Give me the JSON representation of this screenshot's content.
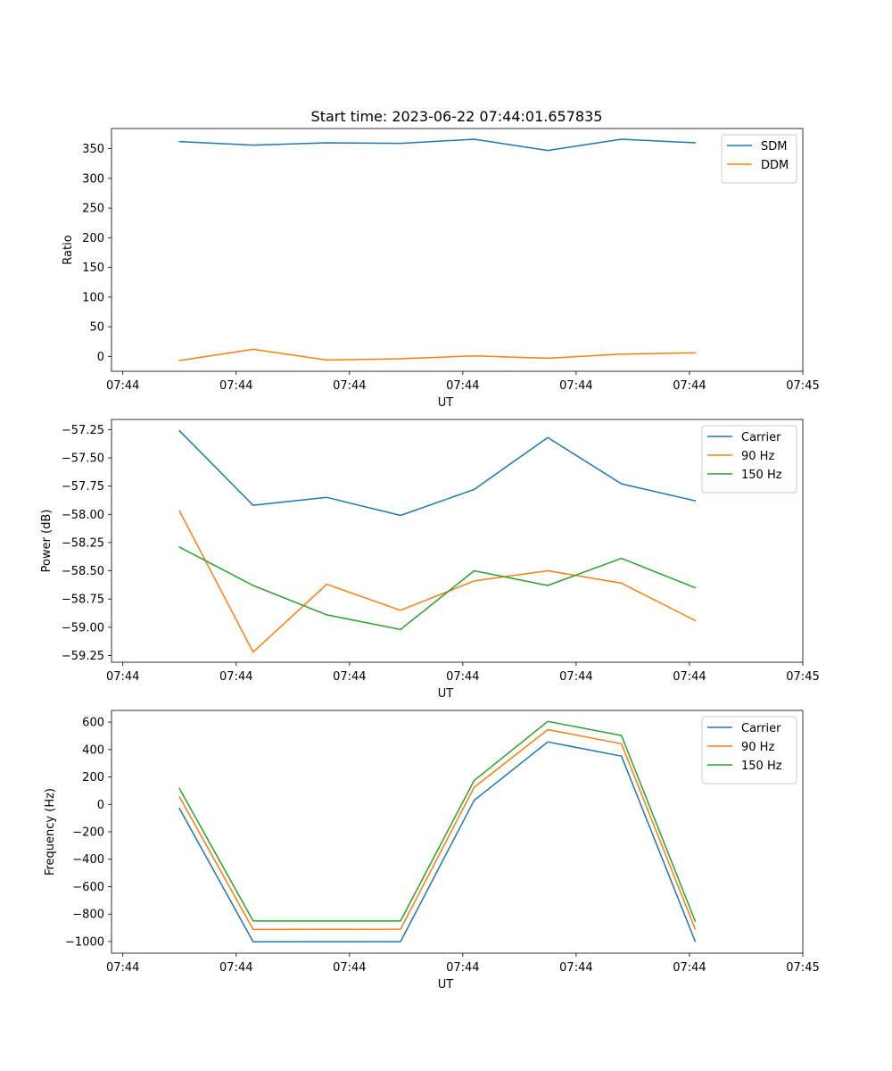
{
  "figure": {
    "title": "Start time: 2023-06-22 07:44:01.657835"
  },
  "chart_data": [
    {
      "type": "line",
      "xlabel": "UT",
      "ylabel": "Ratio",
      "x_tick_labels": [
        "07:44",
        "07:44",
        "07:44",
        "07:44",
        "07:44",
        "07:44",
        "07:45"
      ],
      "x_tick_values": [
        0,
        1,
        2,
        3,
        4,
        5,
        6
      ],
      "xlim": [
        -0.1,
        6.0
      ],
      "y_ticks": [
        0,
        50,
        100,
        150,
        200,
        250,
        300,
        350
      ],
      "ylim": [
        -25,
        384
      ],
      "grid": false,
      "legend_position": "top-right",
      "x": [
        0.5,
        1.15,
        1.8,
        2.45,
        3.1,
        3.75,
        4.4,
        5.05
      ],
      "series": [
        {
          "name": "SDM",
          "color": "#1f77b4",
          "values": [
            362,
            356,
            360,
            359,
            366,
            347,
            366,
            360
          ]
        },
        {
          "name": "DDM",
          "color": "#ff7f0e",
          "values": [
            -7,
            12,
            -6,
            -4,
            1,
            -3,
            4,
            6
          ]
        }
      ]
    },
    {
      "type": "line",
      "xlabel": "UT",
      "ylabel": "Power (dB)",
      "x_tick_labels": [
        "07:44",
        "07:44",
        "07:44",
        "07:44",
        "07:44",
        "07:44",
        "07:45"
      ],
      "x_tick_values": [
        0,
        1,
        2,
        3,
        4,
        5,
        6
      ],
      "xlim": [
        -0.1,
        6.0
      ],
      "y_ticks": [
        -59.25,
        -59.0,
        -58.75,
        -58.5,
        -58.25,
        -58.0,
        -57.75,
        -57.5,
        -57.25
      ],
      "y_tick_labels": [
        "−59.25",
        "−59.00",
        "−58.75",
        "−58.50",
        "−58.25",
        "−58.00",
        "−57.75",
        "−57.50",
        "−57.25"
      ],
      "ylim": [
        -59.31,
        -57.16
      ],
      "grid": false,
      "legend_position": "top-right",
      "x": [
        0.5,
        1.15,
        1.8,
        2.45,
        3.1,
        3.75,
        4.4,
        5.05
      ],
      "series": [
        {
          "name": "Carrier",
          "color": "#1f77b4",
          "values": [
            -57.26,
            -57.92,
            -57.85,
            -58.01,
            -57.78,
            -57.32,
            -57.73,
            -57.88
          ]
        },
        {
          "name": "90 Hz",
          "color": "#ff7f0e",
          "values": [
            -57.97,
            -59.22,
            -58.62,
            -58.85,
            -58.59,
            -58.5,
            -58.61,
            -58.94
          ]
        },
        {
          "name": "150 Hz",
          "color": "#2ca02c",
          "values": [
            -58.29,
            -58.63,
            -58.89,
            -59.02,
            -58.5,
            -58.63,
            -58.39,
            -58.65
          ]
        }
      ]
    },
    {
      "type": "line",
      "xlabel": "UT",
      "ylabel": "Frequency (Hz)",
      "x_tick_labels": [
        "07:44",
        "07:44",
        "07:44",
        "07:44",
        "07:44",
        "07:44",
        "07:45"
      ],
      "x_tick_values": [
        0,
        1,
        2,
        3,
        4,
        5,
        6
      ],
      "xlim": [
        -0.1,
        6.0
      ],
      "y_ticks": [
        -1000,
        -800,
        -600,
        -400,
        -200,
        0,
        200,
        400,
        600
      ],
      "y_tick_labels": [
        "−1000",
        "−800",
        "−600",
        "−400",
        "−200",
        "0",
        "200",
        "400",
        "600"
      ],
      "ylim": [
        -1085,
        685
      ],
      "grid": false,
      "legend_position": "top-right",
      "x": [
        0.5,
        1.15,
        1.8,
        2.45,
        3.1,
        3.75,
        4.4,
        5.05
      ],
      "series": [
        {
          "name": "Carrier",
          "color": "#1f77b4",
          "values": [
            -30,
            -1002,
            -1001,
            -1001,
            30,
            455,
            352,
            -998
          ]
        },
        {
          "name": "90 Hz",
          "color": "#ff7f0e",
          "values": [
            55,
            -912,
            -911,
            -910,
            125,
            545,
            442,
            -908
          ]
        },
        {
          "name": "150 Hz",
          "color": "#2ca02c",
          "values": [
            115,
            -850,
            -850,
            -850,
            175,
            605,
            502,
            -850
          ]
        }
      ]
    }
  ]
}
